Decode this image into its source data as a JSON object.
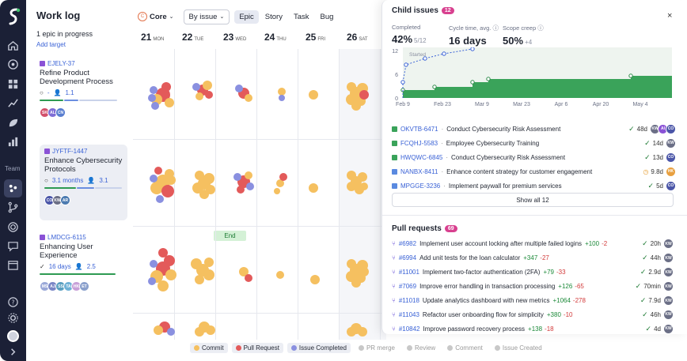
{
  "sidebar": {
    "title": "Work log",
    "epic_count": "1 epic in progress",
    "add_target": "Add target",
    "epics": [
      {
        "key": "EJELY-37",
        "name": "Refine Product Development Process",
        "meta_left": "-",
        "meta_right": "1.1",
        "avatars": [
          {
            "t": "SK",
            "c": "#d2506b"
          },
          {
            "t": "AL",
            "c": "#7f6ed6"
          },
          {
            "t": "CN",
            "c": "#5a7fd0"
          }
        ]
      },
      {
        "key": "JYFTF-1447",
        "name": "Enhance Cybersecurity Protocols",
        "meta_left": "3.1 months",
        "meta_right": "3.1",
        "avatars": [
          {
            "t": "CO",
            "c": "#4b56a8"
          },
          {
            "t": "KW",
            "c": "#6b6f86"
          },
          {
            "t": "AR",
            "c": "#4b7ab0"
          }
        ]
      },
      {
        "key": "LMDCG-6115",
        "name": "Enhancing User Experience",
        "meta_left": "16 days",
        "meta_right": "2.5",
        "avatars": [
          {
            "t": "MS",
            "c": "#9aa8d8"
          },
          {
            "t": "AJ",
            "c": "#7a86c6"
          },
          {
            "t": "SS",
            "c": "#5a9fc0"
          },
          {
            "t": "TA",
            "c": "#6fb1d6"
          },
          {
            "t": "HK",
            "c": "#c8a0d8"
          },
          {
            "t": "ET",
            "c": "#8aa0cc"
          }
        ]
      }
    ]
  },
  "toolbar": {
    "core_initial": "C",
    "core_label": "Core",
    "group_label": "By issue",
    "types": [
      "Epic",
      "Story",
      "Task",
      "Bug"
    ]
  },
  "days": [
    {
      "n": "21",
      "d": "MON"
    },
    {
      "n": "22",
      "d": "TUE"
    },
    {
      "n": "23",
      "d": "WED"
    },
    {
      "n": "24",
      "d": "THU"
    },
    {
      "n": "25",
      "d": "FRI"
    },
    {
      "n": "26",
      "d": "SAT"
    }
  ],
  "end_label": "End",
  "legend": [
    {
      "label": "Commit",
      "color": "#f5c060",
      "on": true
    },
    {
      "label": "Pull Request",
      "color": "#e35a5a",
      "on": true
    },
    {
      "label": "Issue Completed",
      "color": "#8a90e0",
      "on": true
    },
    {
      "label": "PR merge",
      "color": "#c8c8c8",
      "on": false
    },
    {
      "label": "Review",
      "color": "#c8c8c8",
      "on": false
    },
    {
      "label": "Comment",
      "color": "#c8c8c8",
      "on": false
    },
    {
      "label": "Issue Created",
      "color": "#c8c8c8",
      "on": false
    }
  ],
  "panel": {
    "title": "Child issues",
    "badge": "12",
    "close": "×",
    "stats": [
      {
        "label": "Completed",
        "value": "42%",
        "sub": "5/12"
      },
      {
        "label": "Cycle time, avg.",
        "value": "16 days",
        "sub": ""
      },
      {
        "label": "Scope creep",
        "value": "50%",
        "sub": "+4"
      }
    ],
    "chart": {
      "y_ticks": [
        "12",
        "6",
        "0"
      ],
      "x_ticks": [
        "Feb 9",
        "Feb 23",
        "Mar 9",
        "Mar 23",
        "Apr 6",
        "Apr 20",
        "May 4"
      ],
      "started_label": "Started"
    },
    "issues": [
      {
        "key": "OKVTB-6471",
        "title": "Conduct Cybersecurity Risk Assessment",
        "time": "48d",
        "status": "done",
        "type": "story",
        "avatars": [
          {
            "t": "KW",
            "c": "#6b6f86"
          },
          {
            "t": "AI",
            "c": "#8a52d6"
          },
          {
            "t": "CO",
            "c": "#4b56a8"
          }
        ]
      },
      {
        "key": "FCQHJ-5583",
        "title": "Employee Cybersecurity Training",
        "time": "14d",
        "status": "done",
        "type": "story",
        "avatars": [
          {
            "t": "KW",
            "c": "#6b6f86"
          }
        ]
      },
      {
        "key": "HWQWC-6845",
        "title": "Conduct Cybersecurity Risk Assessment",
        "time": "13d",
        "status": "done",
        "type": "story",
        "avatars": [
          {
            "t": "CO",
            "c": "#4b56a8"
          }
        ]
      },
      {
        "key": "NANBX-8411",
        "title": "Enhance content strategy for customer engagement",
        "time": "9.8d",
        "status": "progress",
        "type": "task",
        "avatars": [
          {
            "t": "HK",
            "c": "#e8a040"
          }
        ]
      },
      {
        "key": "MPGGE-3236",
        "title": "Implement paywall for premium services",
        "time": "5d",
        "status": "done",
        "type": "task",
        "avatars": [
          {
            "t": "CO",
            "c": "#4b56a8"
          }
        ]
      }
    ],
    "show_all": "Show all 12",
    "pr_title": "Pull requests",
    "pr_badge": "69",
    "prs": [
      {
        "num": "#6982",
        "title": "Implement user account locking after multiple failed logins",
        "add": "+100",
        "del": "-2",
        "time": "20h"
      },
      {
        "num": "#6994",
        "title": "Add unit tests for the loan calculator",
        "add": "+347",
        "del": "-27",
        "time": "44h"
      },
      {
        "num": "#11001",
        "title": "Implement two-factor authentication (2FA)",
        "add": "+79",
        "del": "-33",
        "time": "2.9d"
      },
      {
        "num": "#7069",
        "title": "Improve error handling in transaction processing",
        "add": "+126",
        "del": "-65",
        "time": "70min"
      },
      {
        "num": "#11018",
        "title": "Update analytics dashboard with new metrics",
        "add": "+1064",
        "del": "-278",
        "time": "7.9d"
      },
      {
        "num": "#11043",
        "title": "Refactor user onboarding flow for simplicity",
        "add": "+380",
        "del": "-10",
        "time": "46h"
      },
      {
        "num": "#10842",
        "title": "Improve password recovery process",
        "add": "+138",
        "del": "-18",
        "time": "4d"
      }
    ],
    "pr_avatar": {
      "t": "KW",
      "c": "#6b6f86"
    }
  }
}
